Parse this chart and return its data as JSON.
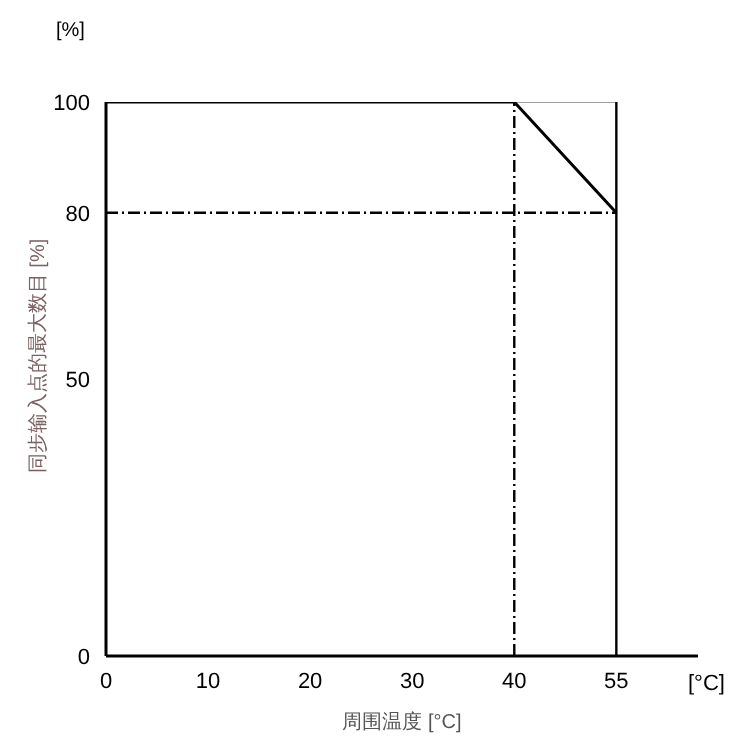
{
  "chart_data": {
    "type": "line",
    "xlabel": "周围温度 [°C]",
    "ylabel": "同步输入点的最大数目 [%]",
    "annotations": [
      "[%]",
      "[°C]"
    ],
    "categories": [
      "0",
      "10",
      "20",
      "30",
      "40",
      "55"
    ],
    "series": [
      {
        "color": "#a0a0a0",
        "values": [
          null,
          null,
          null,
          null,
          100,
          100
        ]
      },
      {
        "color": "#000000",
        "values": [
          100,
          100,
          100,
          100,
          100,
          80
        ]
      }
    ],
    "ylim": [
      0,
      100
    ],
    "yticks": [
      0,
      50,
      80,
      100
    ],
    "ref_lines": [
      {
        "axis": "y",
        "value": 80,
        "line_style": "dashed",
        "color": "#000000"
      },
      {
        "axis": "x",
        "value": "40",
        "line_style": "dashed",
        "color": "#000000"
      },
      {
        "axis": "x",
        "value": "55",
        "line_style": "solid",
        "color": "#000000"
      }
    ],
    "grid": false,
    "marker": "none"
  }
}
